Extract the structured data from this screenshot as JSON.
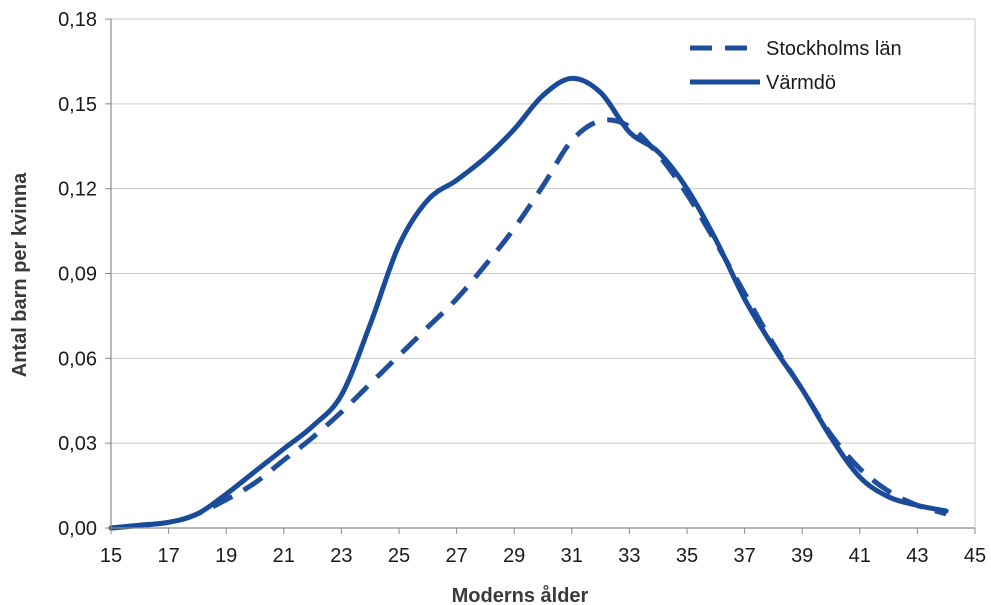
{
  "chart_data": {
    "type": "line",
    "title": "",
    "xlabel": "Moderns ålder",
    "ylabel": "Antal barn per kvinna",
    "xlim": [
      15,
      45
    ],
    "ylim": [
      0,
      0.18
    ],
    "x_ticks": [
      "15",
      "17",
      "19",
      "21",
      "23",
      "25",
      "27",
      "29",
      "31",
      "33",
      "35",
      "37",
      "39",
      "41",
      "43",
      "45"
    ],
    "y_ticks": [
      "0,00",
      "0,03",
      "0,06",
      "0,09",
      "0,12",
      "0,15",
      "0,18"
    ],
    "grid": "horizontal",
    "legend_position": "top-right",
    "colors": {
      "stockholm": "#1f4e9c",
      "varmdo": "#1a4a9a",
      "grid": "#c8c8c8",
      "axis": "#8c8c8c"
    },
    "series": [
      {
        "name": "Stockholms län",
        "style": "dashed",
        "x": [
          15,
          17,
          18,
          19,
          20,
          21,
          22,
          23,
          24,
          25,
          26,
          27,
          28,
          29,
          30,
          31,
          32,
          33,
          34,
          35,
          36,
          37,
          38,
          39,
          40,
          41,
          42,
          43,
          44
        ],
        "y": [
          0.0,
          0.002,
          0.005,
          0.01,
          0.016,
          0.024,
          0.032,
          0.041,
          0.051,
          0.061,
          0.071,
          0.081,
          0.093,
          0.106,
          0.121,
          0.137,
          0.144,
          0.142,
          0.132,
          0.118,
          0.101,
          0.083,
          0.065,
          0.049,
          0.033,
          0.021,
          0.013,
          0.008,
          0.005
        ]
      },
      {
        "name": "Värmdö",
        "style": "solid",
        "x": [
          15,
          16,
          17,
          18,
          19,
          20,
          21,
          22,
          23,
          24,
          25,
          26,
          27,
          28,
          29,
          30,
          31,
          32,
          33,
          34,
          35,
          36,
          37,
          38,
          39,
          40,
          41,
          42,
          43,
          44
        ],
        "y": [
          0.0,
          0.001,
          0.002,
          0.005,
          0.012,
          0.02,
          0.028,
          0.036,
          0.047,
          0.072,
          0.1,
          0.116,
          0.123,
          0.131,
          0.141,
          0.153,
          0.159,
          0.154,
          0.14,
          0.133,
          0.12,
          0.102,
          0.081,
          0.064,
          0.049,
          0.032,
          0.018,
          0.011,
          0.008,
          0.006
        ]
      }
    ]
  }
}
